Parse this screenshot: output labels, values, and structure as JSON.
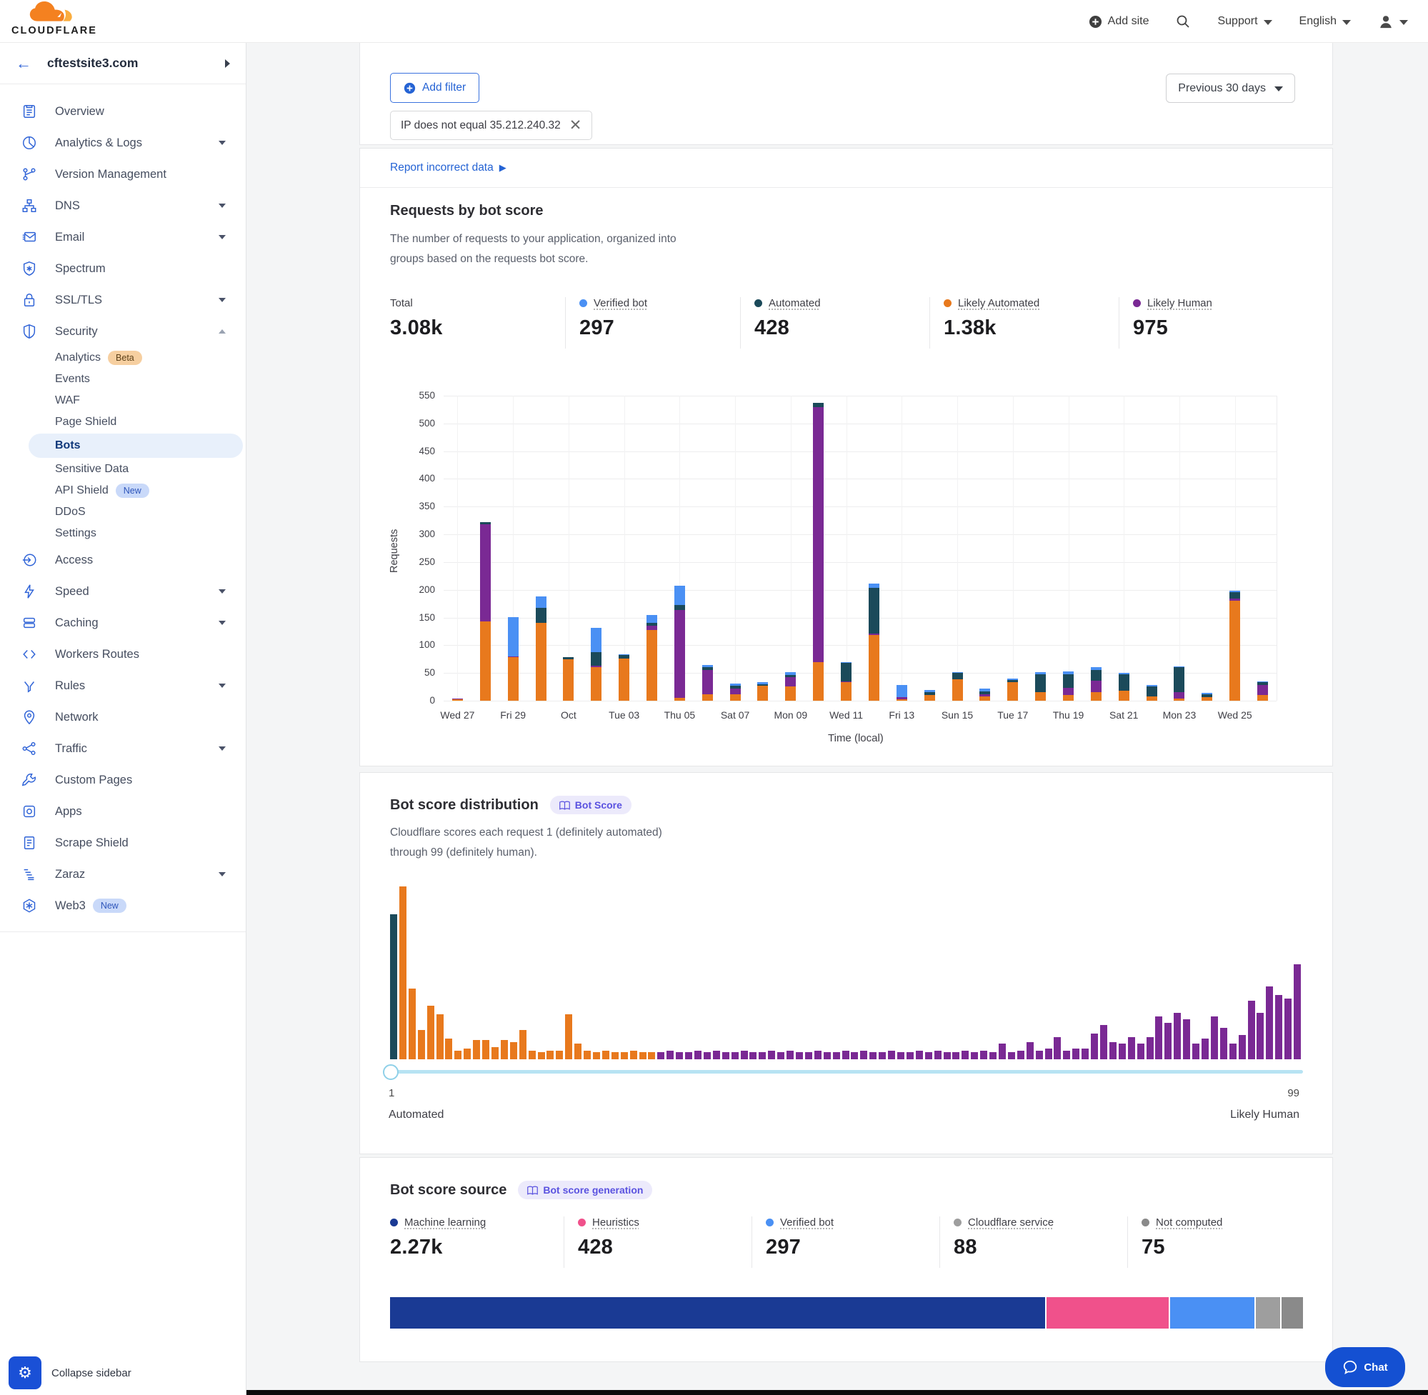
{
  "header": {
    "brand": "CLOUDFLARE",
    "add_site": "Add site",
    "support": "Support",
    "language": "English"
  },
  "sidebar": {
    "site": "cftestsite3.com",
    "collapse": "Collapse sidebar",
    "items": [
      {
        "label": "Overview",
        "icon": "clipboard"
      },
      {
        "label": "Analytics & Logs",
        "icon": "pie",
        "chevron": "down"
      },
      {
        "label": "Version Management",
        "icon": "branch"
      },
      {
        "label": "DNS",
        "icon": "sitemap",
        "chevron": "down"
      },
      {
        "label": "Email",
        "icon": "mail",
        "chevron": "down"
      },
      {
        "label": "Spectrum",
        "icon": "shield-star"
      },
      {
        "label": "SSL/TLS",
        "icon": "lock",
        "chevron": "down"
      },
      {
        "label": "Security",
        "icon": "shield",
        "chevron": "up",
        "children": [
          {
            "label": "Analytics",
            "badge": "Beta",
            "badge_type": "beta"
          },
          {
            "label": "Events"
          },
          {
            "label": "WAF"
          },
          {
            "label": "Page Shield"
          },
          {
            "label": "Bots",
            "active": true
          },
          {
            "label": "Sensitive Data"
          },
          {
            "label": "API Shield",
            "badge": "New",
            "badge_type": "new"
          },
          {
            "label": "DDoS"
          },
          {
            "label": "Settings"
          }
        ]
      },
      {
        "label": "Access",
        "icon": "login"
      },
      {
        "label": "Speed",
        "icon": "bolt",
        "chevron": "down"
      },
      {
        "label": "Caching",
        "icon": "stack",
        "chevron": "down"
      },
      {
        "label": "Workers Routes",
        "icon": "code"
      },
      {
        "label": "Rules",
        "icon": "funnel",
        "chevron": "down"
      },
      {
        "label": "Network",
        "icon": "pin"
      },
      {
        "label": "Traffic",
        "icon": "share",
        "chevron": "down"
      },
      {
        "label": "Custom Pages",
        "icon": "wrench"
      },
      {
        "label": "Apps",
        "icon": "app"
      },
      {
        "label": "Scrape Shield",
        "icon": "doc"
      },
      {
        "label": "Zaraz",
        "icon": "bars",
        "chevron": "down"
      },
      {
        "label": "Web3",
        "icon": "hex",
        "badge": "New",
        "badge_type": "new"
      }
    ]
  },
  "filters": {
    "add_filter": "Add filter",
    "chip": "IP does not equal 35.212.240.32",
    "range": "Previous 30 days"
  },
  "report_link": "Report incorrect data",
  "colors": {
    "verified_bot": "#4a90f4",
    "automated": "#1b4a5a",
    "likely_automated": "#e8791d",
    "likely_human": "#7a2994",
    "machine_learning": "#1a3a94",
    "heuristics": "#f0518b",
    "cloudflare_service": "#9e9e9e",
    "not_computed": "#8a8a8a"
  },
  "requests_card": {
    "title": "Requests by bot score",
    "desc_line1": "The number of requests to your application, organized into",
    "desc_line2": "groups based on the requests bot score.",
    "stats": [
      {
        "label": "Total",
        "value": "3.08k"
      },
      {
        "label": "Verified bot",
        "value": "297",
        "color_key": "verified_bot"
      },
      {
        "label": "Automated",
        "value": "428",
        "color_key": "automated"
      },
      {
        "label": "Likely Automated",
        "value": "1.38k",
        "color_key": "likely_automated"
      },
      {
        "label": "Likely Human",
        "value": "975",
        "color_key": "likely_human"
      }
    ]
  },
  "distribution_card": {
    "title": "Bot score distribution",
    "badge": "Bot Score",
    "desc_line1": "Cloudflare scores each request 1 (definitely automated)",
    "desc_line2": "through 99 (definitely human).",
    "slider": {
      "min": "1",
      "min_label": "Automated",
      "max": "99",
      "max_label": "Likely Human"
    }
  },
  "source_card": {
    "title": "Bot score source",
    "badge": "Bot score generation",
    "stats": [
      {
        "label": "Machine learning",
        "value": "2.27k",
        "color_key": "machine_learning"
      },
      {
        "label": "Heuristics",
        "value": "428",
        "color_key": "heuristics"
      },
      {
        "label": "Verified bot",
        "value": "297",
        "color_key": "verified_bot"
      },
      {
        "label": "Cloudflare service",
        "value": "88",
        "color_key": "cloudflare_service"
      },
      {
        "label": "Not computed",
        "value": "75",
        "color_key": "not_computed"
      }
    ]
  },
  "chat_label": "Chat",
  "chart_data": [
    {
      "type": "bar",
      "name": "requests_by_bot_score",
      "title": "Requests by bot score",
      "xlabel": "Time (local)",
      "ylabel": "Requests",
      "ylim": [
        0,
        550
      ],
      "ytick_step": 50,
      "label_every": 2,
      "x_labels": [
        "Wed 27",
        "Fri 29",
        "Oct",
        "Tue 03",
        "Thu 05",
        "Sat 07",
        "Mon 09",
        "Wed 11",
        "Fri 13",
        "Sun 15",
        "Tue 17",
        "Thu 19",
        "Sat 21",
        "Mon 23",
        "Wed 25"
      ],
      "series": [
        {
          "name": "Likely Automated",
          "color_key": "likely_automated",
          "values": [
            3,
            143,
            78,
            140,
            75,
            60,
            76,
            127,
            5,
            12,
            11,
            27,
            26,
            70,
            33,
            118,
            2,
            10,
            38,
            8,
            34,
            15,
            10,
            16,
            18,
            8,
            4,
            7,
            180,
            10
          ]
        },
        {
          "name": "Likely Human",
          "color_key": "likely_human",
          "values": [
            1,
            175,
            2,
            0,
            0,
            3,
            0,
            8,
            158,
            43,
            11,
            0,
            16,
            460,
            2,
            3,
            4,
            0,
            0,
            3,
            0,
            0,
            13,
            20,
            0,
            0,
            12,
            0,
            4,
            18
          ]
        },
        {
          "name": "Automated",
          "color_key": "automated",
          "values": [
            0,
            4,
            0,
            28,
            3,
            25,
            6,
            6,
            9,
            5,
            5,
            3,
            4,
            7,
            33,
            82,
            0,
            6,
            12,
            6,
            3,
            33,
            25,
            20,
            30,
            18,
            44,
            5,
            12,
            5
          ]
        },
        {
          "name": "Verified bot",
          "color_key": "verified_bot",
          "values": [
            0,
            0,
            71,
            20,
            1,
            43,
            2,
            13,
            36,
            4,
            4,
            3,
            6,
            0,
            2,
            8,
            23,
            3,
            2,
            5,
            3,
            4,
            5,
            4,
            2,
            2,
            2,
            2,
            2,
            2
          ]
        }
      ]
    },
    {
      "type": "histogram",
      "name": "bot_score_distribution",
      "x_range": [
        1,
        99
      ],
      "group_ranges": {
        "automated": [
          1,
          1
        ],
        "likely_automated": [
          2,
          29
        ],
        "likely_human": [
          30,
          99
        ]
      },
      "heights_pct": [
        84,
        100,
        41,
        17,
        31,
        26,
        12,
        5,
        6,
        11,
        11,
        7,
        11,
        10,
        17,
        5,
        4,
        5,
        5,
        26,
        9,
        5,
        4,
        5,
        4,
        4,
        5,
        4,
        4,
        4,
        5,
        4,
        4,
        5,
        4,
        5,
        4,
        4,
        5,
        4,
        4,
        5,
        4,
        5,
        4,
        4,
        5,
        4,
        4,
        5,
        4,
        5,
        4,
        4,
        5,
        4,
        4,
        5,
        4,
        5,
        4,
        4,
        5,
        4,
        5,
        4,
        9,
        4,
        5,
        10,
        5,
        6,
        13,
        5,
        6,
        6,
        15,
        20,
        10,
        9,
        13,
        9,
        13,
        25,
        21,
        27,
        23,
        9,
        12,
        25,
        18,
        9,
        14,
        34,
        27,
        42,
        37,
        35,
        55
      ]
    },
    {
      "type": "proportion_bar",
      "name": "bot_score_source",
      "segments": [
        {
          "name": "Machine learning",
          "value": 2270,
          "color_key": "machine_learning"
        },
        {
          "name": "Heuristics",
          "value": 428,
          "color_key": "heuristics"
        },
        {
          "name": "Verified bot",
          "value": 297,
          "color_key": "verified_bot"
        },
        {
          "name": "Cloudflare service",
          "value": 88,
          "color_key": "cloudflare_service"
        },
        {
          "name": "Not computed",
          "value": 75,
          "color_key": "not_computed"
        }
      ]
    }
  ]
}
